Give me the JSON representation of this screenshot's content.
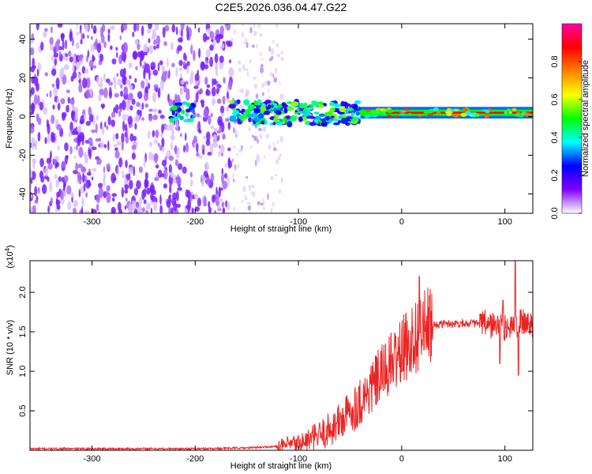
{
  "figure_title": "C2E5.2026.036.04.47.G22",
  "colorbar": {
    "label": "Normalized spectral amplitude",
    "ticks": [
      "0.0",
      "0.2",
      "0.4",
      "0.6",
      "0.8"
    ],
    "tick_values": [
      0.0,
      0.2,
      0.4,
      0.6,
      0.8
    ],
    "range": [
      0,
      1
    ],
    "colors": [
      "#ffffff",
      "#8000ff",
      "#0000ff",
      "#00ffff",
      "#00ff00",
      "#ffff00",
      "#ff8000",
      "#ff0000",
      "#ff00a0"
    ]
  },
  "chart_data": [
    {
      "type": "heatmap",
      "title": "C2E5.2026.036.04.47.G22",
      "xlabel": "Height of straight line (km)",
      "ylabel": "Frequency (Hz)",
      "xlim": [
        -360,
        127
      ],
      "ylim": [
        -50,
        48
      ],
      "x_ticks": [
        -300,
        -200,
        -100,
        0,
        100
      ],
      "x_tick_labels": [
        "-300",
        "-200",
        "-100",
        "0",
        "100"
      ],
      "y_ticks": [
        -40,
        -20,
        0,
        20,
        40
      ],
      "y_tick_labels": [
        "-40",
        "-20",
        "0",
        "20",
        "40"
      ],
      "description_regions": {
        "noise_band": [
          -360,
          -165
        ],
        "noise_tail": [
          -165,
          -115
        ],
        "signal_ridge": [
          -165,
          -40
        ],
        "stable_line": [
          -40,
          127
        ],
        "ridge_frequency_hz": 2
      },
      "base_line_color": "#ff0000"
    },
    {
      "type": "line",
      "xlabel": "Height of straight line (km)",
      "ylabel": "SNR (10 * v/v)",
      "y_scale_note": "(x10^4)",
      "xlim": [
        -360,
        127
      ],
      "ylim": [
        0,
        2.4
      ],
      "x_ticks": [
        -300,
        -200,
        -100,
        0,
        100
      ],
      "x_tick_labels": [
        "-300",
        "-200",
        "-100",
        "0",
        "100"
      ],
      "y_ticks": [
        0.5,
        1.0,
        1.5,
        2.0
      ],
      "y_tick_labels": [
        "0.5",
        "1.0",
        "1.5",
        "2.0"
      ],
      "line_color": "#ee2222",
      "series": [
        {
          "name": "SNR",
          "x": [
            -360,
            -300,
            -200,
            -150,
            -120,
            -100,
            -90,
            -80,
            -70,
            -60,
            -50,
            -40,
            -30,
            -20,
            -10,
            0,
            10,
            20,
            30,
            40,
            60,
            80,
            90,
            100,
            110,
            120,
            127
          ],
          "y": [
            0.02,
            0.02,
            0.02,
            0.03,
            0.05,
            0.08,
            0.12,
            0.18,
            0.26,
            0.36,
            0.48,
            0.62,
            0.78,
            0.95,
            1.1,
            1.25,
            1.4,
            1.52,
            1.58,
            1.6,
            1.61,
            1.6,
            1.58,
            1.55,
            1.6,
            1.62,
            1.59
          ]
        }
      ],
      "spikes": [
        {
          "x": 17,
          "y": 2.2
        },
        {
          "x": 110,
          "y": 2.4
        },
        {
          "x": 98,
          "y": 1.9
        },
        {
          "x": 113,
          "y": 0.95
        },
        {
          "x": 95,
          "y": 1.1
        }
      ]
    }
  ]
}
